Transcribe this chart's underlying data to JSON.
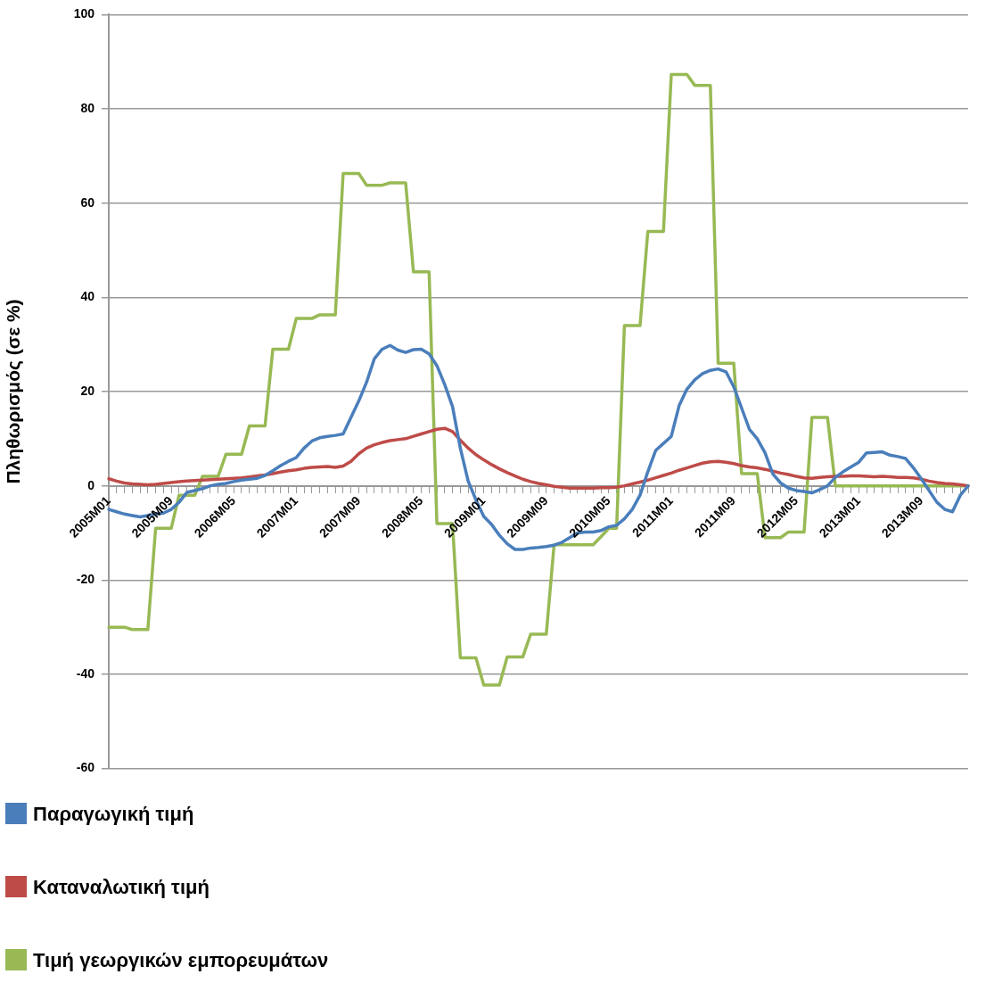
{
  "chart_data": {
    "type": "line",
    "ylabel": "Πληθωρισμός (σε %)",
    "categories": [
      "2005M01",
      null,
      null,
      null,
      null,
      null,
      null,
      null,
      "2005M09",
      null,
      null,
      null,
      null,
      null,
      null,
      null,
      "2006M05",
      null,
      null,
      null,
      null,
      null,
      null,
      null,
      "2007M01",
      null,
      null,
      null,
      null,
      null,
      null,
      null,
      "2007M09",
      null,
      null,
      null,
      null,
      null,
      null,
      null,
      "2008M05",
      null,
      null,
      null,
      null,
      null,
      null,
      null,
      "2009M01",
      null,
      null,
      null,
      null,
      null,
      null,
      null,
      "2009M09",
      null,
      null,
      null,
      null,
      null,
      null,
      null,
      "2010M05",
      null,
      null,
      null,
      null,
      null,
      null,
      null,
      "2011M01",
      null,
      null,
      null,
      null,
      null,
      null,
      null,
      "2011M09",
      null,
      null,
      null,
      null,
      null,
      null,
      null,
      "2012M05",
      null,
      null,
      null,
      null,
      null,
      null,
      null,
      "2013M01",
      null,
      null,
      null,
      null,
      null,
      null,
      null,
      "2013M09",
      null,
      null,
      null,
      null,
      null,
      null
    ],
    "series": [
      {
        "name": "Παραγωγική τιμή",
        "color": "#4a7ebb",
        "values": [
          -5,
          -5.5,
          -6,
          -6.3,
          -6.6,
          -6.3,
          -6,
          -5.8,
          -5,
          -3.5,
          -1.4,
          -1,
          -0.6,
          0,
          0.3,
          0.5,
          0.9,
          1.2,
          1.4,
          1.6,
          2.2,
          3.2,
          4.3,
          5.2,
          6,
          8,
          9.5,
          10.2,
          10.5,
          10.7,
          11,
          14.5,
          18,
          22,
          27,
          29,
          29.8,
          28.8,
          28.3,
          28.9,
          29,
          28,
          25.5,
          21.5,
          16.8,
          8,
          1,
          -3,
          -6.5,
          -8.2,
          -10.5,
          -12.3,
          -13.5,
          -13.5,
          -13.2,
          -13.1,
          -12.9,
          -12.6,
          -12,
          -11,
          -10,
          -9.8,
          -9.8,
          -9.5,
          -8.7,
          -8.4,
          -7,
          -5,
          -2,
          3,
          7.5,
          9,
          10.5,
          17,
          20.5,
          22.5,
          23.8,
          24.5,
          24.8,
          24.2,
          21,
          16.5,
          12,
          10,
          7,
          2.5,
          0.6,
          -0.5,
          -1,
          -1.2,
          -1.5,
          -0.8,
          0,
          1.8,
          3,
          4,
          5,
          7,
          7.1,
          7.2,
          6.5,
          6.2,
          5.8,
          3.8,
          1.5,
          -1,
          -3.5,
          -5,
          -5.5,
          -2,
          0
        ]
      },
      {
        "name": "Καταναλωτική τιμή",
        "color": "#be4b48",
        "values": [
          1.5,
          1,
          0.6,
          0.4,
          0.3,
          0.2,
          0.3,
          0.5,
          0.7,
          0.9,
          1,
          1.1,
          1.2,
          1.3,
          1.4,
          1.5,
          1.6,
          1.7,
          1.9,
          2.1,
          2.3,
          2.6,
          2.9,
          3.2,
          3.4,
          3.7,
          3.9,
          4,
          4.1,
          3.9,
          4.2,
          5.2,
          6.8,
          8,
          8.7,
          9.2,
          9.6,
          9.8,
          10,
          10.5,
          11,
          11.5,
          12,
          12.2,
          11.5,
          9.7,
          8,
          6.6,
          5.5,
          4.5,
          3.6,
          2.8,
          2.1,
          1.4,
          0.9,
          0.5,
          0.2,
          -0.1,
          -0.3,
          -0.5,
          -0.5,
          -0.5,
          -0.5,
          -0.4,
          -0.4,
          -0.3,
          0,
          0.4,
          0.8,
          1.2,
          1.7,
          2.2,
          2.7,
          3.3,
          3.8,
          4.3,
          4.8,
          5.1,
          5.2,
          5,
          4.7,
          4.3,
          4,
          3.8,
          3.5,
          3.1,
          2.7,
          2.4,
          2,
          1.7,
          1.6,
          1.8,
          1.9,
          2,
          2,
          2.1,
          2.1,
          2,
          1.9,
          2,
          1.9,
          1.8,
          1.8,
          1.7,
          1.4,
          1,
          0.7,
          0.5,
          0.4,
          0.2,
          0
        ]
      },
      {
        "name": "Τιμή γεωργικών εμπορευμάτων",
        "color": "#98b954",
        "values": [
          -30,
          -30,
          -30,
          -30.5,
          -30.5,
          -30.5,
          -9,
          -9,
          -9,
          -2,
          -2,
          -2,
          2,
          2,
          2,
          6.7,
          6.7,
          6.7,
          12.7,
          12.7,
          12.7,
          29,
          29,
          29,
          35.5,
          35.5,
          35.5,
          36.3,
          36.3,
          36.3,
          66.3,
          66.3,
          66.3,
          63.8,
          63.8,
          63.8,
          64.3,
          64.3,
          64.3,
          45.4,
          45.4,
          45.4,
          -8,
          -8,
          -8,
          -36.5,
          -36.5,
          -36.5,
          -42.3,
          -42.3,
          -42.3,
          -36.3,
          -36.3,
          -36.3,
          -31.5,
          -31.5,
          -31.5,
          -12.5,
          -12.5,
          -12.5,
          -12.5,
          -12.5,
          -12.5,
          -10.8,
          -9,
          -9,
          34,
          34,
          34,
          54,
          54,
          54,
          87.3,
          87.3,
          87.3,
          85,
          85,
          85,
          26,
          26,
          26,
          2.6,
          2.6,
          2.6,
          -11,
          -11,
          -11,
          -9.8,
          -9.8,
          -9.8,
          14.5,
          14.5,
          14.5,
          0,
          0,
          0,
          0,
          0,
          0,
          0,
          0,
          0,
          0,
          0,
          0,
          0,
          0,
          0,
          0,
          0,
          0
        ]
      }
    ],
    "ylim": [
      -60,
      100
    ],
    "yticks": [
      -60,
      -40,
      -20,
      0,
      20,
      40,
      60,
      80,
      100
    ],
    "grid": "y",
    "legend": "bottom",
    "marker": "none",
    "line_style": "solid"
  }
}
